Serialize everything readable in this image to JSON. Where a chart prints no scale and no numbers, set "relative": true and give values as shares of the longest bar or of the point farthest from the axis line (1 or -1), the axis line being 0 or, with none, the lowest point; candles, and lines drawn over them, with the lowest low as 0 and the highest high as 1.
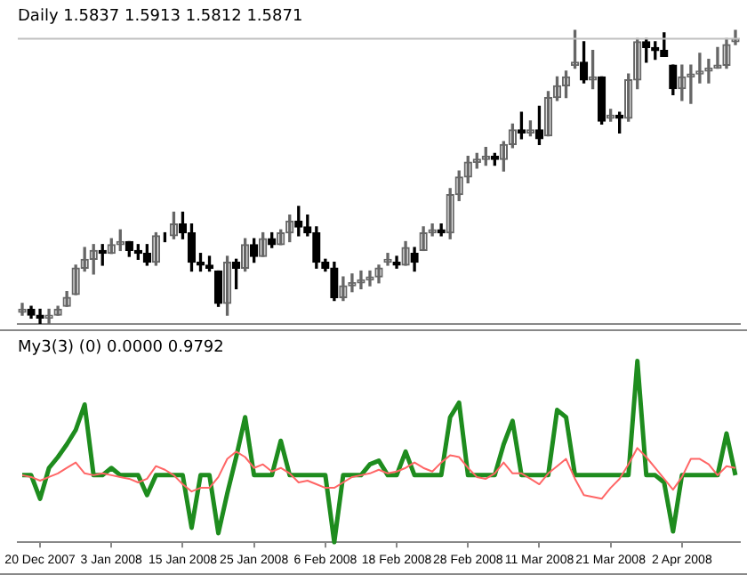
{
  "chart_data": [
    {
      "type": "candlestick",
      "title": "Daily 1.5837 1.5913 1.5812 1.5871",
      "relative": true,
      "tick_labels": false,
      "grid": false,
      "legend": false,
      "ref_lines": [
        {
          "axis": "y",
          "value": 0.97,
          "color": "#c0c0c0"
        }
      ],
      "colors": [
        "#666666",
        "#000000",
        "#000000",
        "#666666",
        "#666666",
        "#666666",
        "#666666",
        "#666666",
        "#666666",
        "#000000",
        "#666666",
        "#666666",
        "#000000",
        "#000000",
        "#000000",
        "#666666",
        "#000000",
        "#666666",
        "#000000",
        "#000000",
        "#000000",
        "#000000",
        "#000000",
        "#666666",
        "#000000",
        "#666666",
        "#000000",
        "#666666",
        "#000000",
        "#666666",
        "#666666",
        "#000000",
        "#000000",
        "#000000",
        "#000000",
        "#000000",
        "#666666",
        "#666666",
        "#666666",
        "#666666",
        "#666666",
        "#666666",
        "#000000",
        "#666666",
        "#000000",
        "#666666",
        "#666666",
        "#000000",
        "#666666",
        "#666666",
        "#666666",
        "#666666",
        "#666666",
        "#000000",
        "#666666",
        "#666666",
        "#000000",
        "#666666",
        "#000000",
        "#666666",
        "#666666",
        "#666666",
        "#666666",
        "#000000",
        "#666666",
        "#000000",
        "#666666",
        "#000000",
        "#666666",
        "#666666",
        "#000000",
        "#000000",
        "#000000",
        "#000000",
        "#666666",
        "#666666",
        "#666666",
        "#666666",
        "#666666",
        "#666666",
        "#666666"
      ],
      "ohlc": [
        [
          0.04,
          0.07,
          0.03,
          0.05
        ],
        [
          0.05,
          0.06,
          0.02,
          0.03
        ],
        [
          0.03,
          0.05,
          0.0,
          0.02
        ],
        [
          0.02,
          0.05,
          0.0,
          0.03
        ],
        [
          0.03,
          0.06,
          0.03,
          0.05
        ],
        [
          0.06,
          0.11,
          0.06,
          0.09
        ],
        [
          0.1,
          0.2,
          0.1,
          0.19
        ],
        [
          0.19,
          0.26,
          0.18,
          0.22
        ],
        [
          0.22,
          0.27,
          0.17,
          0.25
        ],
        [
          0.25,
          0.27,
          0.2,
          0.24
        ],
        [
          0.24,
          0.29,
          0.24,
          0.27
        ],
        [
          0.27,
          0.32,
          0.25,
          0.28
        ],
        [
          0.28,
          0.28,
          0.23,
          0.25
        ],
        [
          0.25,
          0.27,
          0.22,
          0.24
        ],
        [
          0.24,
          0.27,
          0.2,
          0.21
        ],
        [
          0.21,
          0.31,
          0.2,
          0.3
        ],
        [
          0.3,
          0.31,
          0.28,
          0.3
        ],
        [
          0.3,
          0.38,
          0.29,
          0.34
        ],
        [
          0.34,
          0.38,
          0.29,
          0.31
        ],
        [
          0.31,
          0.34,
          0.18,
          0.21
        ],
        [
          0.21,
          0.24,
          0.18,
          0.2
        ],
        [
          0.2,
          0.23,
          0.18,
          0.19
        ],
        [
          0.18,
          0.18,
          0.06,
          0.07
        ],
        [
          0.07,
          0.23,
          0.03,
          0.21
        ],
        [
          0.21,
          0.22,
          0.12,
          0.19
        ],
        [
          0.19,
          0.29,
          0.18,
          0.27
        ],
        [
          0.27,
          0.29,
          0.21,
          0.23
        ],
        [
          0.23,
          0.31,
          0.23,
          0.29
        ],
        [
          0.29,
          0.31,
          0.26,
          0.27
        ],
        [
          0.27,
          0.32,
          0.27,
          0.31
        ],
        [
          0.31,
          0.37,
          0.28,
          0.35
        ],
        [
          0.35,
          0.4,
          0.3,
          0.33
        ],
        [
          0.33,
          0.37,
          0.3,
          0.31
        ],
        [
          0.31,
          0.33,
          0.19,
          0.21
        ],
        [
          0.21,
          0.22,
          0.18,
          0.19
        ],
        [
          0.19,
          0.21,
          0.08,
          0.09
        ],
        [
          0.09,
          0.16,
          0.08,
          0.13
        ],
        [
          0.13,
          0.17,
          0.11,
          0.14
        ],
        [
          0.14,
          0.18,
          0.12,
          0.15
        ],
        [
          0.15,
          0.18,
          0.13,
          0.16
        ],
        [
          0.16,
          0.2,
          0.14,
          0.19
        ],
        [
          0.21,
          0.24,
          0.2,
          0.22
        ],
        [
          0.21,
          0.23,
          0.19,
          0.2
        ],
        [
          0.2,
          0.28,
          0.2,
          0.26
        ],
        [
          0.24,
          0.26,
          0.18,
          0.21
        ],
        [
          0.25,
          0.33,
          0.25,
          0.31
        ],
        [
          0.31,
          0.34,
          0.3,
          0.32
        ],
        [
          0.32,
          0.34,
          0.3,
          0.31
        ],
        [
          0.31,
          0.46,
          0.29,
          0.44
        ],
        [
          0.44,
          0.52,
          0.42,
          0.5
        ],
        [
          0.5,
          0.57,
          0.48,
          0.55
        ],
        [
          0.55,
          0.58,
          0.53,
          0.56
        ],
        [
          0.56,
          0.6,
          0.54,
          0.57
        ],
        [
          0.57,
          0.58,
          0.54,
          0.56
        ],
        [
          0.56,
          0.62,
          0.52,
          0.61
        ],
        [
          0.61,
          0.68,
          0.6,
          0.66
        ],
        [
          0.66,
          0.72,
          0.63,
          0.65
        ],
        [
          0.65,
          0.69,
          0.64,
          0.66
        ],
        [
          0.66,
          0.74,
          0.61,
          0.63
        ],
        [
          0.64,
          0.79,
          0.64,
          0.77
        ],
        [
          0.77,
          0.84,
          0.76,
          0.81
        ],
        [
          0.81,
          0.86,
          0.77,
          0.84
        ],
        [
          0.88,
          1.0,
          0.87,
          0.89
        ],
        [
          0.89,
          0.96,
          0.82,
          0.83
        ],
        [
          0.83,
          0.93,
          0.8,
          0.84
        ],
        [
          0.84,
          0.84,
          0.68,
          0.69
        ],
        [
          0.7,
          0.73,
          0.69,
          0.71
        ],
        [
          0.71,
          0.72,
          0.65,
          0.7
        ],
        [
          0.7,
          0.85,
          0.69,
          0.83
        ],
        [
          0.83,
          0.97,
          0.8,
          0.96
        ],
        [
          0.96,
          0.97,
          0.89,
          0.94
        ],
        [
          0.94,
          0.96,
          0.9,
          0.93
        ],
        [
          0.93,
          0.99,
          0.91,
          0.91
        ],
        [
          0.88,
          0.88,
          0.78,
          0.8
        ],
        [
          0.8,
          0.88,
          0.76,
          0.84
        ],
        [
          0.84,
          0.88,
          0.75,
          0.85
        ],
        [
          0.85,
          0.92,
          0.82,
          0.86
        ],
        [
          0.86,
          0.9,
          0.82,
          0.87
        ],
        [
          0.87,
          0.94,
          0.87,
          0.88
        ],
        [
          0.88,
          0.97,
          0.87,
          0.95
        ],
        [
          0.96,
          1.0,
          0.95,
          0.97
        ]
      ]
    },
    {
      "type": "line",
      "title": "My3(3) (0) 0.0000 0.9792",
      "relative": true,
      "tick_labels": "x",
      "grid": false,
      "legend": false,
      "marker": "none",
      "categories": [
        null,
        null,
        "20 Dec 2007",
        null,
        null,
        null,
        null,
        null,
        null,
        null,
        "3 Jan 2008",
        null,
        null,
        null,
        null,
        null,
        null,
        null,
        "15 Jan 2008",
        null,
        null,
        null,
        null,
        null,
        null,
        null,
        "25 Jan 2008",
        null,
        null,
        null,
        null,
        null,
        null,
        null,
        "6 Feb 2008",
        null,
        null,
        null,
        null,
        null,
        null,
        null,
        "18 Feb 2008",
        null,
        null,
        null,
        null,
        null,
        null,
        null,
        "28 Feb 2008",
        null,
        null,
        null,
        null,
        null,
        null,
        null,
        "11 Mar 2008",
        null,
        null,
        null,
        null,
        null,
        null,
        null,
        "21 Mar 2008",
        null,
        null,
        null,
        null,
        null,
        null,
        null,
        "2 Apr 2008",
        null,
        null,
        null,
        null,
        null,
        null
      ],
      "series": [
        {
          "color": "#1e8c1e",
          "values": [
            0.37,
            0.37,
            0.24,
            0.41,
            0.47,
            0.54,
            0.62,
            0.76,
            0.37,
            0.37,
            0.41,
            0.37,
            0.37,
            0.37,
            0.26,
            0.37,
            0.37,
            0.37,
            0.37,
            0.08,
            0.37,
            0.37,
            0.05,
            0.27,
            0.47,
            0.69,
            0.37,
            0.37,
            0.37,
            0.56,
            0.37,
            0.37,
            0.37,
            0.37,
            0.37,
            0.0,
            0.37,
            0.37,
            0.37,
            0.43,
            0.45,
            0.37,
            0.37,
            0.5,
            0.37,
            0.37,
            0.37,
            0.37,
            0.69,
            0.77,
            0.37,
            0.37,
            0.37,
            0.37,
            0.54,
            0.67,
            0.37,
            0.37,
            0.37,
            0.37,
            0.73,
            0.69,
            0.37,
            0.37,
            0.37,
            0.37,
            0.37,
            0.37,
            0.37,
            1.0,
            0.37,
            0.37,
            0.33,
            0.06,
            0.37,
            0.37,
            0.37,
            0.37,
            0.37,
            0.6,
            0.37
          ]
        },
        {
          "color": "#ff6666",
          "values": [
            0.37,
            0.36,
            0.34,
            0.36,
            0.38,
            0.41,
            0.44,
            0.38,
            0.37,
            0.38,
            0.37,
            0.36,
            0.35,
            0.33,
            0.35,
            0.42,
            0.4,
            0.37,
            0.32,
            0.28,
            0.3,
            0.3,
            0.36,
            0.46,
            0.5,
            0.47,
            0.41,
            0.43,
            0.39,
            0.41,
            0.38,
            0.33,
            0.34,
            0.32,
            0.3,
            0.3,
            0.33,
            0.36,
            0.37,
            0.38,
            0.4,
            0.38,
            0.39,
            0.41,
            0.44,
            0.41,
            0.39,
            0.44,
            0.48,
            0.47,
            0.41,
            0.36,
            0.35,
            0.38,
            0.44,
            0.38,
            0.38,
            0.35,
            0.32,
            0.38,
            0.42,
            0.46,
            0.35,
            0.26,
            0.25,
            0.24,
            0.3,
            0.35,
            0.43,
            0.52,
            0.47,
            0.41,
            0.35,
            0.29,
            0.36,
            0.46,
            0.46,
            0.43,
            0.37,
            0.42,
            0.41
          ]
        }
      ]
    }
  ]
}
